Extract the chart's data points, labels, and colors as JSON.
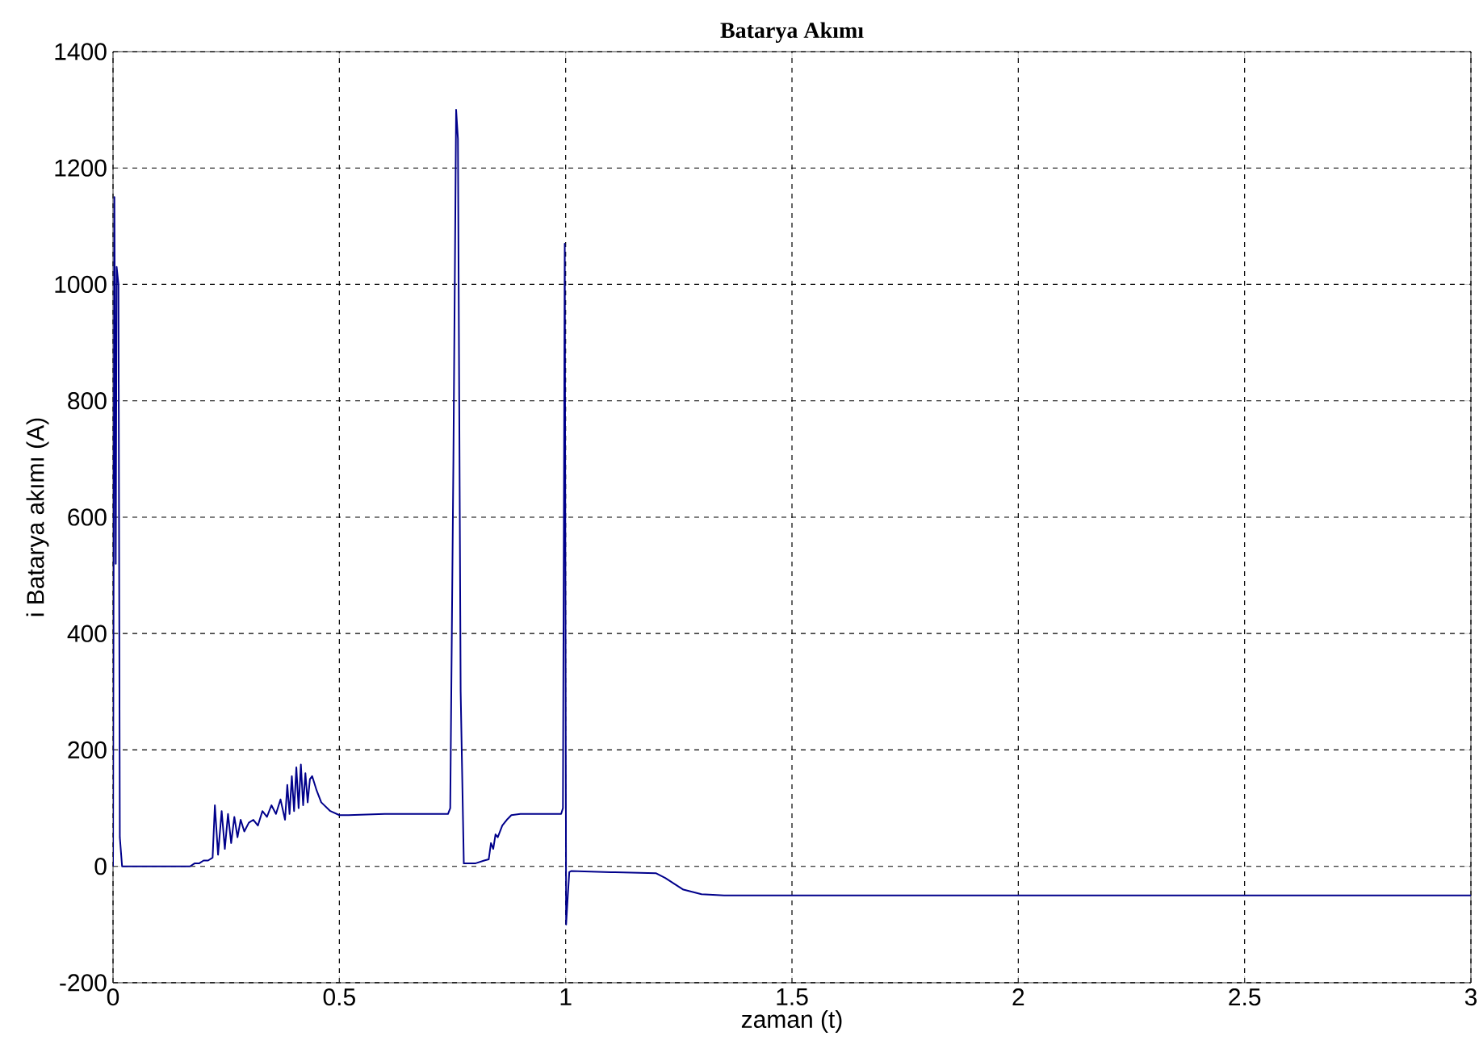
{
  "chart_data": {
    "type": "line",
    "title": "Batarya Akımı",
    "xlabel": "zaman (t)",
    "ylabel": "i Batarya akımı  (A)",
    "xlim": [
      0,
      3
    ],
    "ylim": [
      -200,
      1400
    ],
    "xticks": [
      0,
      0.5,
      1,
      1.5,
      2,
      2.5,
      3
    ],
    "yticks": [
      -200,
      0,
      200,
      400,
      600,
      800,
      1000,
      1200,
      1400
    ],
    "grid": true,
    "line_style": "solid",
    "marker": "none",
    "series": [
      {
        "color": "#00008b",
        "x": [
          0,
          0.003,
          0.006,
          0.008,
          0.012,
          0.015,
          0.02,
          0.17,
          0.18,
          0.19,
          0.2,
          0.21,
          0.22,
          0.225,
          0.232,
          0.24,
          0.247,
          0.254,
          0.261,
          0.268,
          0.275,
          0.282,
          0.29,
          0.3,
          0.31,
          0.32,
          0.33,
          0.34,
          0.35,
          0.36,
          0.37,
          0.38,
          0.385,
          0.39,
          0.395,
          0.4,
          0.405,
          0.41,
          0.415,
          0.42,
          0.425,
          0.43,
          0.435,
          0.44,
          0.45,
          0.46,
          0.48,
          0.5,
          0.52,
          0.6,
          0.74,
          0.745,
          0.752,
          0.758,
          0.762,
          0.768,
          0.775,
          0.8,
          0.82,
          0.83,
          0.835,
          0.84,
          0.845,
          0.85,
          0.86,
          0.87,
          0.88,
          0.9,
          0.99,
          0.994,
          0.998,
          1.001,
          1.004,
          1.008,
          1.012,
          1.1,
          1.2,
          1.22,
          1.26,
          1.3,
          1.35,
          3
        ],
        "values": [
          0,
          1150,
          520,
          1030,
          1000,
          50,
          0,
          0,
          5,
          5,
          10,
          10,
          15,
          105,
          20,
          95,
          30,
          90,
          40,
          85,
          50,
          80,
          60,
          75,
          80,
          70,
          95,
          85,
          105,
          90,
          115,
          80,
          140,
          90,
          155,
          95,
          170,
          100,
          175,
          105,
          160,
          110,
          150,
          155,
          130,
          110,
          95,
          88,
          88,
          90,
          90,
          100,
          700,
          1300,
          1250,
          300,
          5,
          5,
          10,
          12,
          40,
          30,
          55,
          50,
          70,
          80,
          88,
          90,
          90,
          100,
          1070,
          -100,
          -60,
          -10,
          -8,
          -10,
          -12,
          -20,
          -40,
          -48,
          -50,
          -50
        ]
      }
    ]
  }
}
